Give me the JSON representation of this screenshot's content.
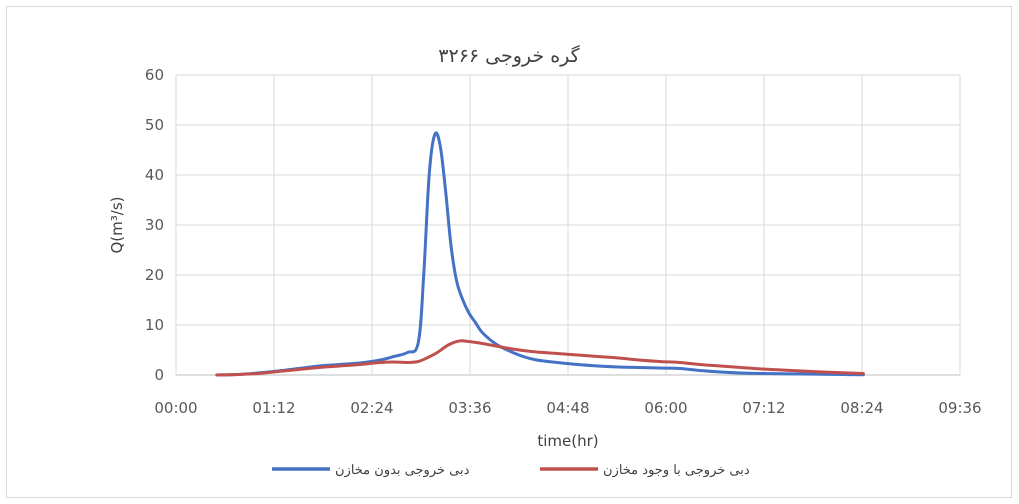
{
  "chart_data": {
    "type": "line",
    "title": "گره خروجی ۳۲۶۶",
    "xlabel": "time(hr)",
    "ylabel": "Q(m³/s)",
    "x_ticks": [
      "00:00",
      "01:12",
      "02:24",
      "03:36",
      "04:48",
      "06:00",
      "07:12",
      "08:24",
      "09:36"
    ],
    "y_ticks": [
      "0",
      "10",
      "20",
      "30",
      "40",
      "50",
      "60"
    ],
    "xlim_minutes": [
      0,
      576
    ],
    "ylim": [
      0,
      60
    ],
    "grid": true,
    "legend_position": "bottom",
    "series": [
      {
        "name": "دبی خروجی بدون مخازن",
        "color": "#4472C4",
        "x_minutes": [
          30,
          45,
          60,
          75,
          90,
          105,
          120,
          135,
          150,
          160,
          170,
          178,
          182,
          186,
          190,
          194,
          198,
          202,
          206,
          210,
          215,
          220,
          225,
          235,
          245,
          255,
          265,
          280,
          295,
          310,
          325,
          340,
          355,
          370,
          385,
          400,
          415,
          430,
          445,
          460,
          475,
          490,
          505
        ],
        "values": [
          0.0,
          0.1,
          0.4,
          0.8,
          1.3,
          1.8,
          2.1,
          2.4,
          3.0,
          3.7,
          4.5,
          6.5,
          20.0,
          40.0,
          48.0,
          46.0,
          37.0,
          26.0,
          19.0,
          15.5,
          12.5,
          10.5,
          8.5,
          6.2,
          4.8,
          3.7,
          3.0,
          2.5,
          2.1,
          1.8,
          1.6,
          1.5,
          1.4,
          1.3,
          0.9,
          0.6,
          0.4,
          0.3,
          0.25,
          0.2,
          0.15,
          0.1,
          0.05
        ]
      },
      {
        "name": "دبی خروجی با وجود مخازن",
        "color": "#C0504D",
        "x_minutes": [
          30,
          45,
          60,
          75,
          90,
          105,
          120,
          135,
          150,
          160,
          170,
          178,
          185,
          192,
          200,
          208,
          215,
          225,
          235,
          245,
          255,
          265,
          280,
          295,
          310,
          325,
          340,
          355,
          370,
          385,
          400,
          415,
          430,
          445,
          460,
          475,
          490,
          505
        ],
        "values": [
          0.0,
          0.1,
          0.3,
          0.7,
          1.1,
          1.5,
          1.8,
          2.1,
          2.5,
          2.6,
          2.5,
          2.7,
          3.5,
          4.5,
          6.0,
          6.8,
          6.7,
          6.3,
          5.8,
          5.3,
          4.9,
          4.6,
          4.3,
          4.0,
          3.7,
          3.4,
          3.0,
          2.7,
          2.5,
          2.1,
          1.8,
          1.5,
          1.2,
          1.0,
          0.8,
          0.6,
          0.45,
          0.3
        ]
      }
    ]
  }
}
